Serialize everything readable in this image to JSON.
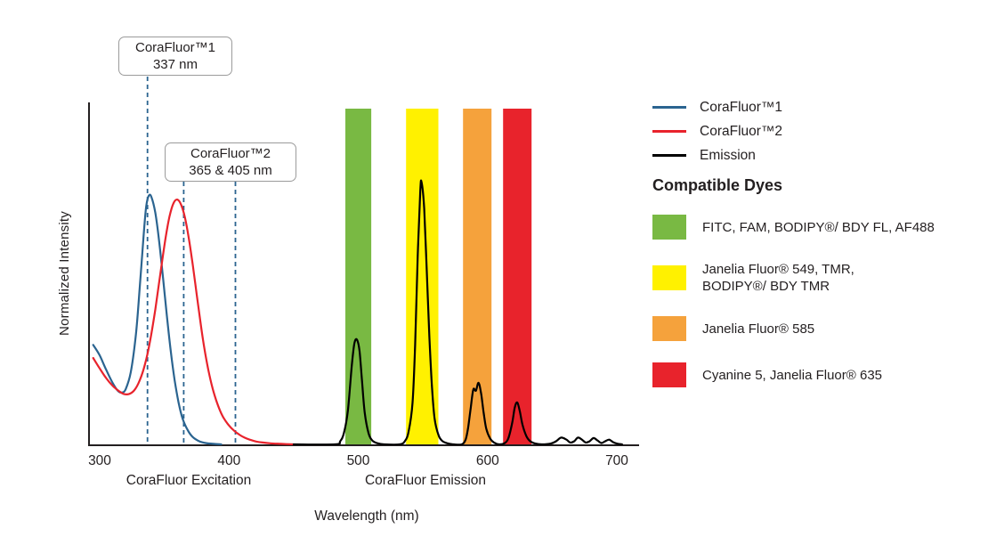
{
  "callouts": {
    "c1": {
      "title": "CoraFluor™1",
      "value": "337 nm"
    },
    "c2": {
      "title": "CoraFluor™2",
      "value": "365 & 405 nm"
    }
  },
  "axis": {
    "y_label": "Normalized Intensity",
    "x_label": "Wavelength (nm)",
    "excitation_caption": "CoraFluor Excitation",
    "emission_caption": "CoraFluor Emission"
  },
  "legend": {
    "items": [
      {
        "label": "CoraFluor™1",
        "color": "#2B6490"
      },
      {
        "label": "CoraFluor™2",
        "color": "#E8232C"
      },
      {
        "label": "Emission",
        "color": "#000000"
      }
    ]
  },
  "compatible_dyes": {
    "title": "Compatible Dyes",
    "items": [
      {
        "label": "FITC, FAM, BODIPY®/ BDY FL, AF488",
        "color": "#79B943"
      },
      {
        "label": "Janelia Fluor® 549, TMR,\nBODIPY®/ BDY TMR",
        "color": "#FFF100"
      },
      {
        "label": "Janelia Fluor® 585",
        "color": "#F5A23C"
      },
      {
        "label": "Cyanine 5, Janelia Fluor® 635",
        "color": "#E8232C"
      }
    ]
  },
  "chart_data": {
    "type": "line",
    "title": "",
    "xlabel": "Wavelength (nm)",
    "ylabel": "Normalized Intensity",
    "xlim": [
      295,
      715
    ],
    "ylim": [
      0,
      1.3
    ],
    "x_ticks": [
      300,
      400,
      500,
      600,
      700
    ],
    "grid": false,
    "legend_position": "top-right",
    "vlines_nm": [
      337,
      365,
      405
    ],
    "vline_color": "#2B6490",
    "bands": [
      {
        "from_nm": 490,
        "to_nm": 510,
        "color": "#79B943",
        "dyes": "FITC, FAM, BODIPY®/ BDY FL, AF488"
      },
      {
        "from_nm": 537,
        "to_nm": 562,
        "color": "#FFF100",
        "dyes": "Janelia Fluor® 549, TMR, BODIPY®/ BDY TMR"
      },
      {
        "from_nm": 581,
        "to_nm": 603,
        "color": "#F5A23C",
        "dyes": "Janelia Fluor® 585"
      },
      {
        "from_nm": 612,
        "to_nm": 634,
        "color": "#E8232C",
        "dyes": "Cyanine 5, Janelia Fluor® 635"
      }
    ],
    "series": [
      {
        "name": "CoraFluor™1",
        "kind": "excitation",
        "color": "#2B6490",
        "points": [
          [
            295,
            0.38
          ],
          [
            300,
            0.34
          ],
          [
            305,
            0.285
          ],
          [
            310,
            0.235
          ],
          [
            314,
            0.205
          ],
          [
            317,
            0.198
          ],
          [
            320,
            0.21
          ],
          [
            324,
            0.275
          ],
          [
            328,
            0.42
          ],
          [
            331,
            0.6
          ],
          [
            334,
            0.8
          ],
          [
            336,
            0.91
          ],
          [
            338,
            0.95
          ],
          [
            340,
            0.945
          ],
          [
            343,
            0.885
          ],
          [
            346,
            0.775
          ],
          [
            349,
            0.635
          ],
          [
            352,
            0.49
          ],
          [
            355,
            0.355
          ],
          [
            358,
            0.245
          ],
          [
            361,
            0.16
          ],
          [
            364,
            0.1
          ],
          [
            368,
            0.055
          ],
          [
            372,
            0.028
          ],
          [
            377,
            0.012
          ],
          [
            382,
            0.005
          ],
          [
            388,
            0.002
          ],
          [
            394,
            0
          ]
        ]
      },
      {
        "name": "CoraFluor™2",
        "kind": "excitation",
        "color": "#E8232C",
        "points": [
          [
            295,
            0.33
          ],
          [
            300,
            0.29
          ],
          [
            305,
            0.253
          ],
          [
            310,
            0.224
          ],
          [
            315,
            0.203
          ],
          [
            319,
            0.192
          ],
          [
            323,
            0.193
          ],
          [
            327,
            0.208
          ],
          [
            331,
            0.245
          ],
          [
            335,
            0.305
          ],
          [
            339,
            0.395
          ],
          [
            343,
            0.515
          ],
          [
            347,
            0.655
          ],
          [
            351,
            0.79
          ],
          [
            354,
            0.87
          ],
          [
            357,
            0.92
          ],
          [
            360,
            0.935
          ],
          [
            363,
            0.915
          ],
          [
            366,
            0.865
          ],
          [
            369,
            0.785
          ],
          [
            372,
            0.685
          ],
          [
            375,
            0.575
          ],
          [
            378,
            0.465
          ],
          [
            381,
            0.365
          ],
          [
            384,
            0.285
          ],
          [
            387,
            0.22
          ],
          [
            390,
            0.17
          ],
          [
            393,
            0.13
          ],
          [
            396,
            0.1
          ],
          [
            400,
            0.072
          ],
          [
            404,
            0.052
          ],
          [
            408,
            0.037
          ],
          [
            412,
            0.026
          ],
          [
            416,
            0.018
          ],
          [
            421,
            0.011
          ],
          [
            426,
            0.007
          ],
          [
            432,
            0.004
          ],
          [
            440,
            0.002
          ],
          [
            450,
            0
          ]
        ]
      },
      {
        "name": "Emission",
        "kind": "emission",
        "color": "#000000",
        "points": [
          [
            450,
            0
          ],
          [
            482,
            0
          ],
          [
            486,
            0.012
          ],
          [
            489,
            0.045
          ],
          [
            492,
            0.13
          ],
          [
            495,
            0.3
          ],
          [
            497,
            0.385
          ],
          [
            499,
            0.4
          ],
          [
            501,
            0.355
          ],
          [
            503,
            0.235
          ],
          [
            505,
            0.12
          ],
          [
            508,
            0.042
          ],
          [
            511,
            0.014
          ],
          [
            515,
            0.004
          ],
          [
            520,
            0
          ],
          [
            532,
            0
          ],
          [
            536,
            0.012
          ],
          [
            539,
            0.05
          ],
          [
            542,
            0.16
          ],
          [
            544,
            0.38
          ],
          [
            546,
            0.72
          ],
          [
            548,
            0.97
          ],
          [
            549,
            1.0
          ],
          [
            551,
            0.9
          ],
          [
            553,
            0.66
          ],
          [
            555,
            0.41
          ],
          [
            557,
            0.22
          ],
          [
            559,
            0.1
          ],
          [
            562,
            0.036
          ],
          [
            565,
            0.013
          ],
          [
            569,
            0.004
          ],
          [
            574,
            0
          ],
          [
            580,
            0
          ],
          [
            583,
            0.018
          ],
          [
            585,
            0.065
          ],
          [
            587,
            0.14
          ],
          [
            589,
            0.21
          ],
          [
            591,
            0.205
          ],
          [
            593,
            0.235
          ],
          [
            595,
            0.195
          ],
          [
            597,
            0.12
          ],
          [
            599,
            0.06
          ],
          [
            602,
            0.022
          ],
          [
            605,
            0.007
          ],
          [
            609,
            0
          ],
          [
            613,
            0.004
          ],
          [
            616,
            0.022
          ],
          [
            619,
            0.08
          ],
          [
            621,
            0.14
          ],
          [
            623,
            0.16
          ],
          [
            625,
            0.125
          ],
          [
            627,
            0.075
          ],
          [
            630,
            0.032
          ],
          [
            633,
            0.012
          ],
          [
            637,
            0.003
          ],
          [
            642,
            0
          ],
          [
            649,
            0.003
          ],
          [
            653,
            0.012
          ],
          [
            657,
            0.026
          ],
          [
            661,
            0.018
          ],
          [
            664,
            0.007
          ],
          [
            667,
            0.012
          ],
          [
            670,
            0.026
          ],
          [
            673,
            0.018
          ],
          [
            676,
            0.007
          ],
          [
            679,
            0.012
          ],
          [
            682,
            0.024
          ],
          [
            685,
            0.015
          ],
          [
            688,
            0.005
          ],
          [
            691,
            0.012
          ],
          [
            694,
            0.018
          ],
          [
            697,
            0.009
          ],
          [
            700,
            0.003
          ],
          [
            704,
            0
          ]
        ]
      }
    ]
  }
}
